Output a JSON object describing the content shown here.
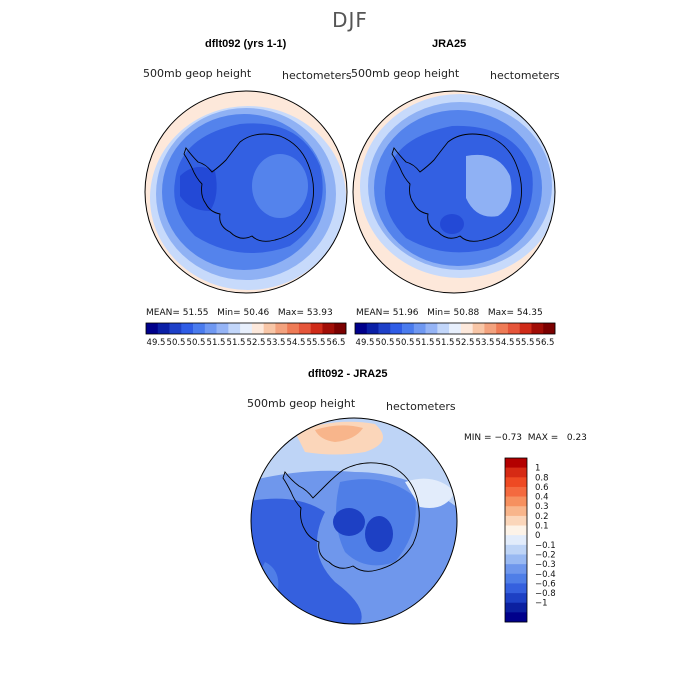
{
  "season_title": "DJF",
  "panels": [
    {
      "title": "dflt092 (yrs 1-1)",
      "field_label": "500mb geop height",
      "units_label": "hectometers",
      "mean_label": "MEAN=",
      "mean": "51.55",
      "min_label": "Min=",
      "min": "50.46",
      "max_label": "Max=",
      "max": "53.93"
    },
    {
      "title": "JRA25",
      "field_label": "500mb geop height",
      "units_label": "hectometers",
      "mean_label": "MEAN=",
      "mean": "51.96",
      "min_label": "Min=",
      "min": "50.88",
      "max_label": "Max=",
      "max": "54.35"
    }
  ],
  "top_colorbar": {
    "colors": [
      "#00008b",
      "#0a1fa6",
      "#1e40c8",
      "#2f5ce6",
      "#4a7bee",
      "#6f98f2",
      "#95b4f6",
      "#c2d6fa",
      "#e8f0fd",
      "#fde9dc",
      "#f8c6a7",
      "#f3a27e",
      "#ee7b56",
      "#e5553a",
      "#cf2a18",
      "#a10d06",
      "#7b0000"
    ],
    "tick_labels": [
      "49.5",
      "50.5",
      "50.5",
      "51.5",
      "51.5",
      "52.5",
      "53.5",
      "54.5",
      "55.5",
      "56.5"
    ]
  },
  "diff_panel": {
    "title": "dflt092 - JRA25",
    "field_label": "500mb geop height",
    "units_label": "hectometers",
    "min_label": "MIN =",
    "min": "−0.73",
    "max_label": "MAX =",
    "max": "0.23"
  },
  "diff_colorbar": {
    "colors": [
      "#b30000",
      "#d62a14",
      "#ee4a23",
      "#f46a3f",
      "#f6905f",
      "#f8b58b",
      "#fbd6ba",
      "#fdf3e8",
      "#e2ecfb",
      "#bed4f6",
      "#99b9f2",
      "#6f97ec",
      "#4f7ee7",
      "#3560de",
      "#1d40c4",
      "#0b20a0",
      "#00008b"
    ],
    "tick_labels": [
      "1",
      "0.8",
      "0.6",
      "0.4",
      "0.3",
      "0.2",
      "0.1",
      "0",
      "−0.1",
      "−0.2",
      "−0.3",
      "−0.4",
      "−0.6",
      "−0.8",
      "−1"
    ]
  },
  "colors": {
    "ring_outer": "#fde8da",
    "ring_light": "#c7dafb",
    "ring_mid": "#8fb1f4",
    "ring_deep": "#5483ec",
    "core": "#3360e2",
    "core_dark": "#2349d6",
    "coast": "#000000"
  }
}
